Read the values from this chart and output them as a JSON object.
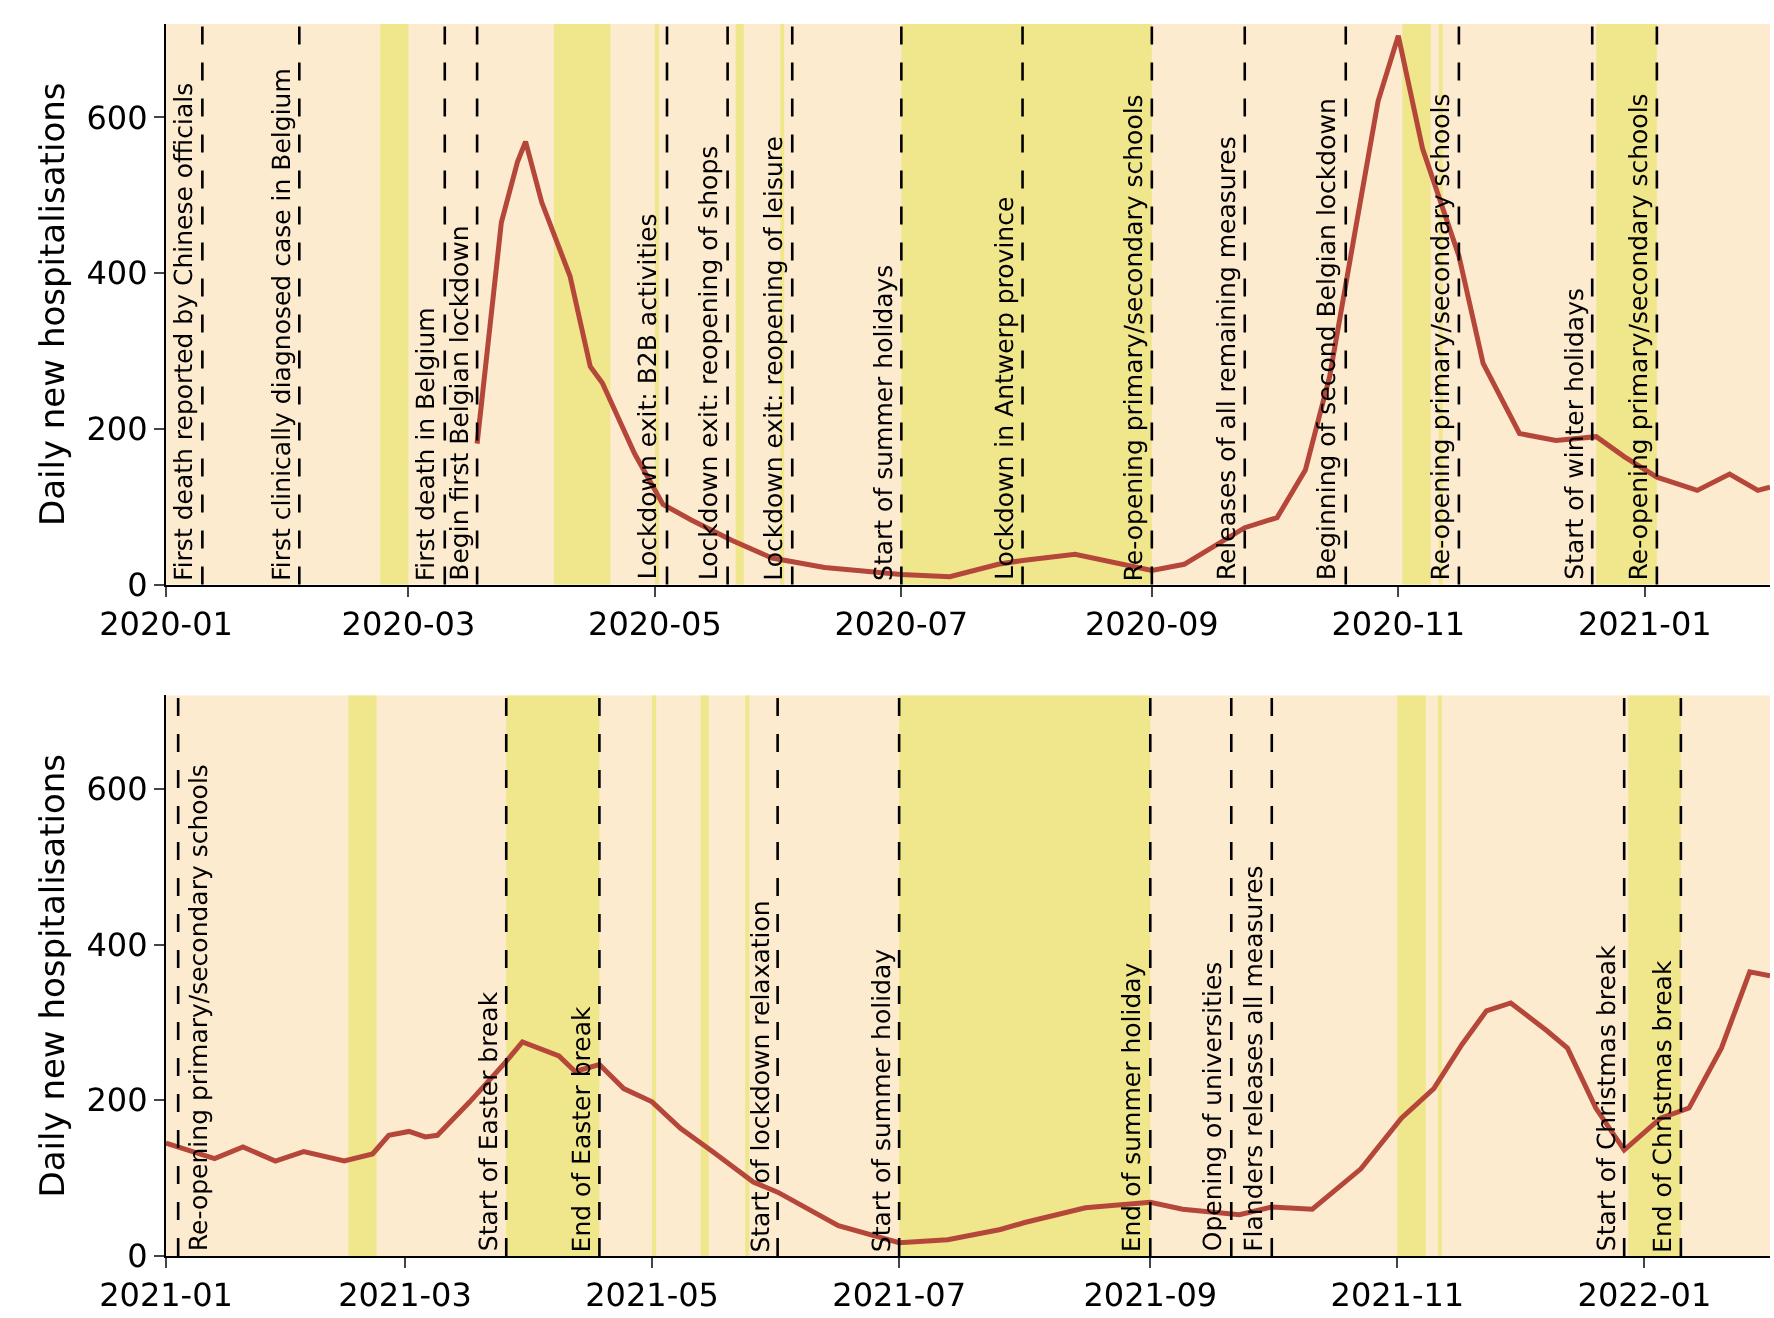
{
  "chart_data": [
    {
      "type": "line",
      "ylabel": "Daily new hospitalisations",
      "grid": false,
      "marker": "none",
      "line_style": "solid",
      "xlim": [
        "2020-01-01",
        "2021-02-01"
      ],
      "xticks": [
        {
          "value": "2020-01-01",
          "label": "2020-01"
        },
        {
          "value": "2020-03-01",
          "label": "2020-03"
        },
        {
          "value": "2020-05-01",
          "label": "2020-05"
        },
        {
          "value": "2020-07-01",
          "label": "2020-07"
        },
        {
          "value": "2020-09-01",
          "label": "2020-09"
        },
        {
          "value": "2020-11-01",
          "label": "2020-11"
        },
        {
          "value": "2021-01-01",
          "label": "2021-01"
        }
      ],
      "ylim": [
        0,
        720
      ],
      "yticks": [
        0,
        200,
        400,
        600
      ],
      "series": [
        {
          "color": "#b5473a",
          "x": [
            "2020-03-18",
            "2020-03-24",
            "2020-03-28",
            "2020-03-30",
            "2020-04-03",
            "2020-04-10",
            "2020-04-15",
            "2020-04-18",
            "2020-04-26",
            "2020-05-03",
            "2020-05-10",
            "2020-05-20",
            "2020-05-30",
            "2020-06-12",
            "2020-07-01",
            "2020-07-13",
            "2020-07-25",
            "2020-07-31",
            "2020-08-13",
            "2020-09-01",
            "2020-09-09",
            "2020-09-24",
            "2020-10-02",
            "2020-10-09",
            "2020-10-15",
            "2020-10-22",
            "2020-10-27",
            "2020-11-01",
            "2020-11-07",
            "2020-11-16",
            "2020-11-22",
            "2020-12-01",
            "2020-12-10",
            "2020-12-20",
            "2020-12-27",
            "2021-01-04",
            "2021-01-14",
            "2021-01-22",
            "2021-01-29",
            "2021-02-01"
          ],
          "values": [
            181,
            465,
            543,
            569,
            491,
            396,
            280,
            259,
            168,
            103,
            83,
            57,
            34,
            22,
            13,
            10,
            26,
            31,
            39,
            18,
            26,
            73,
            86,
            147,
            267,
            474,
            621,
            705,
            560,
            422,
            284,
            194,
            185,
            190,
            164,
            138,
            121,
            142,
            121,
            125
          ]
        }
      ],
      "bands": [
        {
          "axis": "x",
          "from": "2020-02-23",
          "to": "2020-03-01",
          "color": "#f0e68c"
        },
        {
          "axis": "x",
          "from": "2020-04-06",
          "to": "2020-04-20",
          "color": "#f0e68c"
        },
        {
          "axis": "x",
          "from": "2020-05-01",
          "to": "2020-05-02",
          "color": "#f0e68c"
        },
        {
          "axis": "x",
          "from": "2020-05-21",
          "to": "2020-05-23",
          "color": "#f0e68c"
        },
        {
          "axis": "x",
          "from": "2020-06-01",
          "to": "2020-06-02",
          "color": "#f0e68c"
        },
        {
          "axis": "x",
          "from": "2020-07-01",
          "to": "2020-09-01",
          "color": "#f0e68c"
        },
        {
          "axis": "x",
          "from": "2020-11-02",
          "to": "2020-11-09",
          "color": "#f0e68c"
        },
        {
          "axis": "x",
          "from": "2020-11-11",
          "to": "2020-11-12",
          "color": "#f0e68c"
        },
        {
          "axis": "x",
          "from": "2020-12-20",
          "to": "2021-01-04",
          "color": "#f0e68c"
        }
      ],
      "ref_lines": [
        {
          "axis": "x",
          "value": "2020-01-10",
          "label": "First death reported by Chinese officials",
          "color": "#000000",
          "line_style": "dashed"
        },
        {
          "axis": "x",
          "value": "2020-02-03",
          "label": "First clinically diagnosed case in Belgium",
          "color": "#000000",
          "line_style": "dashed"
        },
        {
          "axis": "x",
          "value": "2020-03-10",
          "label": "First death in Belgium",
          "color": "#000000",
          "line_style": "dashed"
        },
        {
          "axis": "x",
          "value": "2020-03-18",
          "label": "Begin first Belgian lockdown",
          "color": "#000000",
          "line_style": "dashed"
        },
        {
          "axis": "x",
          "value": "2020-05-04",
          "label": "Lockdown exit: B2B activities",
          "color": "#000000",
          "line_style": "dashed"
        },
        {
          "axis": "x",
          "value": "2020-05-19",
          "label": "Lockdown exit: reopening of shops",
          "color": "#000000",
          "line_style": "dashed"
        },
        {
          "axis": "x",
          "value": "2020-06-04",
          "label": "Lockdown exit: reopening of leisure",
          "color": "#000000",
          "line_style": "dashed"
        },
        {
          "axis": "x",
          "value": "2020-07-01",
          "label": "Start of summer holidays",
          "color": "#000000",
          "line_style": "dashed"
        },
        {
          "axis": "x",
          "value": "2020-07-31",
          "label": "Lockdown in Antwerp province",
          "color": "#000000",
          "line_style": "dashed"
        },
        {
          "axis": "x",
          "value": "2020-09-01",
          "label": "Re-opening primary/secondary schools",
          "color": "#000000",
          "line_style": "dashed"
        },
        {
          "axis": "x",
          "value": "2020-09-24",
          "label": "Releases of all remaining measures",
          "color": "#000000",
          "line_style": "dashed"
        },
        {
          "axis": "x",
          "value": "2020-10-19",
          "label": "Beginning of second Belgian lockdown",
          "color": "#000000",
          "line_style": "dashed"
        },
        {
          "axis": "x",
          "value": "2020-11-16",
          "label": "Re-opening primary/secondary schools",
          "color": "#000000",
          "line_style": "dashed"
        },
        {
          "axis": "x",
          "value": "2020-12-19",
          "label": "Start of winter holidays",
          "color": "#000000",
          "line_style": "dashed"
        },
        {
          "axis": "x",
          "value": "2021-01-04",
          "label": "Re-opening primary/secondary schools",
          "color": "#000000",
          "line_style": "dashed"
        }
      ]
    },
    {
      "type": "line",
      "ylabel": "Daily new hospitalisations",
      "grid": false,
      "marker": "none",
      "line_style": "solid",
      "xlim": [
        "2021-01-01",
        "2022-02-01"
      ],
      "xticks": [
        {
          "value": "2021-01-01",
          "label": "2021-01"
        },
        {
          "value": "2021-03-01",
          "label": "2021-03"
        },
        {
          "value": "2021-05-01",
          "label": "2021-05"
        },
        {
          "value": "2021-07-01",
          "label": "2021-07"
        },
        {
          "value": "2021-09-01",
          "label": "2021-09"
        },
        {
          "value": "2021-11-01",
          "label": "2021-11"
        },
        {
          "value": "2022-01-01",
          "label": "2022-01"
        }
      ],
      "ylim": [
        0,
        720
      ],
      "yticks": [
        0,
        200,
        400,
        600
      ],
      "series": [
        {
          "color": "#b5473a",
          "x": [
            "2021-01-01",
            "2021-01-13",
            "2021-01-20",
            "2021-01-28",
            "2021-02-04",
            "2021-02-14",
            "2021-02-21",
            "2021-02-25",
            "2021-03-02",
            "2021-03-06",
            "2021-03-09",
            "2021-03-17",
            "2021-03-26",
            "2021-03-30",
            "2021-04-08",
            "2021-04-12",
            "2021-04-18",
            "2021-04-24",
            "2021-05-01",
            "2021-05-08",
            "2021-05-16",
            "2021-05-26",
            "2021-06-01",
            "2021-06-16",
            "2021-07-01",
            "2021-07-13",
            "2021-07-26",
            "2021-08-01",
            "2021-08-16",
            "2021-09-01",
            "2021-09-09",
            "2021-09-23",
            "2021-10-01",
            "2021-10-11",
            "2021-10-23",
            "2021-11-02",
            "2021-11-10",
            "2021-11-17",
            "2021-11-23",
            "2021-11-29",
            "2021-12-08",
            "2021-12-13",
            "2021-12-20",
            "2021-12-27",
            "2022-01-05",
            "2022-01-12",
            "2022-01-20",
            "2022-01-27",
            "2022-02-01"
          ],
          "values": [
            145,
            125,
            140,
            122,
            134,
            122,
            131,
            155,
            160,
            153,
            155,
            198,
            250,
            275,
            257,
            237,
            246,
            215,
            198,
            164,
            134,
            95,
            82,
            39,
            17,
            21,
            34,
            43,
            62,
            69,
            60,
            53,
            63,
            60,
            112,
            177,
            215,
            272,
            315,
            325,
            289,
            267,
            190,
            136,
            177,
            190,
            267,
            365,
            360
          ]
        }
      ],
      "bands": [
        {
          "axis": "x",
          "from": "2021-02-15",
          "to": "2021-02-22",
          "color": "#f0e68c"
        },
        {
          "axis": "x",
          "from": "2021-03-26",
          "to": "2021-04-18",
          "color": "#f0e68c"
        },
        {
          "axis": "x",
          "from": "2021-05-01",
          "to": "2021-05-02",
          "color": "#f0e68c"
        },
        {
          "axis": "x",
          "from": "2021-05-13",
          "to": "2021-05-15",
          "color": "#f0e68c"
        },
        {
          "axis": "x",
          "from": "2021-05-24",
          "to": "2021-05-25",
          "color": "#f0e68c"
        },
        {
          "axis": "x",
          "from": "2021-07-01",
          "to": "2021-09-01",
          "color": "#f0e68c"
        },
        {
          "axis": "x",
          "from": "2021-11-01",
          "to": "2021-11-08",
          "color": "#f0e68c"
        },
        {
          "axis": "x",
          "from": "2021-11-11",
          "to": "2021-11-12",
          "color": "#f0e68c"
        },
        {
          "axis": "x",
          "from": "2021-12-28",
          "to": "2022-01-10",
          "color": "#f0e68c"
        }
      ],
      "ref_lines": [
        {
          "axis": "x",
          "value": "2021-01-04",
          "label": "Re-opening primary/secondary schools",
          "color": "#000000",
          "line_style": "dashed"
        },
        {
          "axis": "x",
          "value": "2021-03-26",
          "label": "Start of Easter break",
          "color": "#000000",
          "line_style": "dashed"
        },
        {
          "axis": "x",
          "value": "2021-04-18",
          "label": "End of Easter break",
          "color": "#000000",
          "line_style": "dashed"
        },
        {
          "axis": "x",
          "value": "2021-06-01",
          "label": "Start of lockdown relaxation",
          "color": "#000000",
          "line_style": "dashed"
        },
        {
          "axis": "x",
          "value": "2021-07-01",
          "label": "Start of summer holiday",
          "color": "#000000",
          "line_style": "dashed"
        },
        {
          "axis": "x",
          "value": "2021-09-01",
          "label": "End of summer holiday",
          "color": "#000000",
          "line_style": "dashed"
        },
        {
          "axis": "x",
          "value": "2021-09-21",
          "label": "Opening of universities",
          "color": "#000000",
          "line_style": "dashed"
        },
        {
          "axis": "x",
          "value": "2021-10-01",
          "label": "Flanders releases all measures",
          "color": "#000000",
          "line_style": "dashed"
        },
        {
          "axis": "x",
          "value": "2021-12-27",
          "label": "Start of Christmas break",
          "color": "#000000",
          "line_style": "dashed"
        },
        {
          "axis": "x",
          "value": "2022-01-10",
          "label": "End of Christmas break",
          "color": "#000000",
          "line_style": "dashed"
        }
      ]
    }
  ]
}
